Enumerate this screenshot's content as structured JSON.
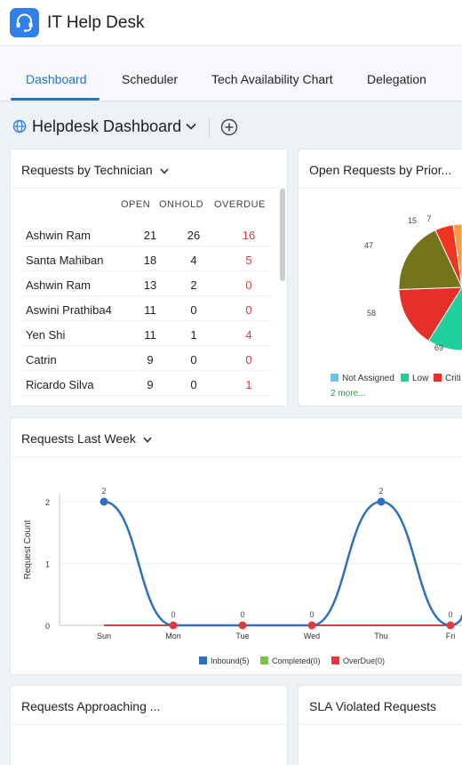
{
  "app": {
    "title": "IT Help Desk",
    "logo_icon": "headset-icon",
    "accent": "#2f80ed"
  },
  "tabs": [
    {
      "label": "Dashboard",
      "active": true
    },
    {
      "label": "Scheduler",
      "active": false
    },
    {
      "label": "Tech Availability Chart",
      "active": false
    },
    {
      "label": "Delegation",
      "active": false
    }
  ],
  "dashboard": {
    "title": "Helpdesk Dashboard",
    "globe_icon": "globe-icon",
    "add_icon": "plus-circle-icon"
  },
  "technician_widget": {
    "title": "Requests by Technician",
    "columns": [
      "OPEN",
      "ONHOLD",
      "OVERDUE"
    ],
    "rows": [
      {
        "name": "Ashwin Ram",
        "open": "21",
        "onhold": "26",
        "overdue": "16"
      },
      {
        "name": "Santa Mahiban",
        "open": "18",
        "onhold": "4",
        "overdue": "5"
      },
      {
        "name": "Ashwin Ram",
        "open": "13",
        "onhold": "2",
        "overdue": "0"
      },
      {
        "name": "Aswini Prathiba4",
        "open": "11",
        "onhold": "0",
        "overdue": "0"
      },
      {
        "name": "Yen Shi",
        "open": "11",
        "onhold": "1",
        "overdue": "4"
      },
      {
        "name": "Catrin",
        "open": "9",
        "onhold": "0",
        "overdue": "0"
      },
      {
        "name": "Ricardo Silva",
        "open": "9",
        "onhold": "0",
        "overdue": "1"
      }
    ],
    "overdue_color": "#e23b3b"
  },
  "priority_widget": {
    "title": "Open Requests by Prior...",
    "more_label": "2 more...",
    "chart_data": {
      "type": "pie",
      "slices": [
        {
          "label": "Not Assigned",
          "color": "#6cc3de"
        },
        {
          "label": "Low",
          "color": "#1fcf9c"
        },
        {
          "label": "Critical",
          "color": "#e5302a"
        },
        {
          "label": "",
          "color": "#76741a"
        },
        {
          "label": "",
          "color": "#f0341f"
        },
        {
          "label": "",
          "color": "#ff9a3c"
        }
      ],
      "shown_values": [
        "69",
        "58",
        "47",
        "15",
        "7"
      ],
      "legend_labels": [
        "Not Assigned",
        "Low",
        "Criti"
      ]
    }
  },
  "week_widget": {
    "title": "Requests Last Week",
    "chart_data": {
      "type": "line",
      "categories": [
        "Sun",
        "Mon",
        "Tue",
        "Wed",
        "Thu",
        "Fri"
      ],
      "ylabel": "Request Count",
      "yticks": [
        "0",
        "1",
        "2"
      ],
      "ylim": [
        0,
        2
      ],
      "series": [
        {
          "name": "Inbound(5)",
          "color": "#2e6fc4",
          "values": [
            2,
            0,
            0,
            0,
            2,
            0
          ]
        },
        {
          "name": "Completed(0)",
          "color": "#7dc242",
          "values": [
            0,
            0,
            0,
            0,
            0,
            0
          ]
        },
        {
          "name": "OverDue(0)",
          "color": "#e23b3b",
          "values": [
            0,
            0,
            0,
            0,
            0,
            0
          ]
        }
      ],
      "legend_position": "bottom"
    }
  },
  "approaching_widget": {
    "title": "Requests Approaching ..."
  },
  "sla_widget": {
    "title": "SLA Violated Requests"
  }
}
